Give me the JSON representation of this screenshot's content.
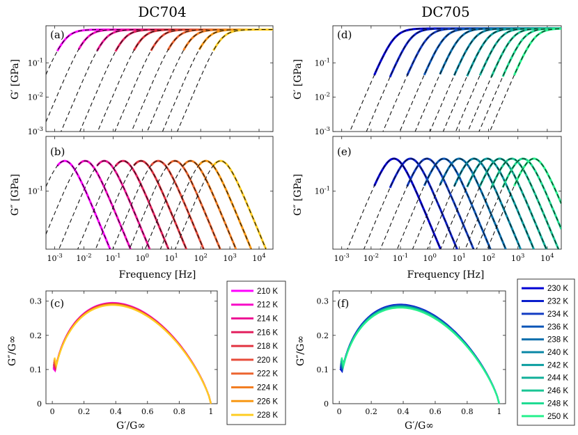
{
  "titles": {
    "left": "DC704",
    "right": "DC705"
  },
  "labels": {
    "storage_modulus": "G′ [GPa]",
    "loss_modulus": "G″ [GPa]",
    "frequency": "Frequency [Hz]",
    "normalized_x": "G′/G∞",
    "normalized_y": "G″/G∞"
  },
  "panels": {
    "a": "(a)",
    "b": "(b)",
    "c": "(c)",
    "d": "(d)",
    "e": "(e)",
    "f": "(f)"
  },
  "ticks": {
    "freq": [
      {
        "v": 0.001,
        "label": "10-3"
      },
      {
        "v": 0.01,
        "label": "10-2"
      },
      {
        "v": 0.1,
        "label": "10-1"
      },
      {
        "v": 1,
        "label": "100"
      },
      {
        "v": 10,
        "label": "101"
      },
      {
        "v": 100,
        "label": "102"
      },
      {
        "v": 1000,
        "label": "103"
      },
      {
        "v": 10000,
        "label": "104"
      }
    ],
    "gprime": [
      {
        "v": 0.001,
        "label": "10-3"
      },
      {
        "v": 0.01,
        "label": "10-2"
      },
      {
        "v": 0.1,
        "label": "10-1"
      }
    ],
    "gdouble": [
      {
        "v": 0.1,
        "label": "10-1"
      }
    ],
    "norm_x": [
      "0",
      "0.2",
      "0.4",
      "0.6",
      "0.8",
      "1"
    ],
    "norm_y": [
      "0",
      "0.1",
      "0.2",
      "0.3"
    ]
  },
  "colors": {
    "DC704": [
      "#ff00ff",
      "#f70cc7",
      "#ee1696",
      "#e3215f",
      "#e23442",
      "#e74c3a",
      "#ec6530",
      "#f27e22",
      "#f89814",
      "#fecd24"
    ],
    "DC705": [
      "#0000d4",
      "#0a1ecc",
      "#123cc3",
      "#0c57b8",
      "#0b6fad",
      "#0a87a6",
      "#0c9ea0",
      "#13b09a",
      "#1ac594",
      "#1fdb92",
      "#27f18e"
    ]
  },
  "chart_data": [
    {
      "type": "line",
      "panel": "a",
      "sample": "DC704",
      "title": "DC704",
      "xscale": "log",
      "yscale": "log",
      "xlim": [
        0.0005,
        30000
      ],
      "ylim": [
        0.001,
        1.2
      ],
      "ylabel": "G′ [GPa]",
      "xlabel": "Frequency [Hz]",
      "series_peak_frequency_hz": [
        0.0022,
        0.011,
        0.05,
        0.22,
        0.9,
        3.5,
        13,
        45,
        150,
        480
      ],
      "series": [
        "210 K",
        "212 K",
        "214 K",
        "216 K",
        "218 K",
        "220 K",
        "222 K",
        "224 K",
        "226 K",
        "228 K"
      ],
      "fit": "dashed black",
      "G_inf_GPa": 0.93
    },
    {
      "type": "line",
      "panel": "b",
      "sample": "DC704",
      "xscale": "log",
      "yscale": "log",
      "xlim": [
        0.0005,
        30000
      ],
      "ylim": [
        0.015,
        0.6
      ],
      "ylabel": "G″ [GPa]",
      "xlabel": "Frequency [Hz]",
      "peak_values_GPa": [
        0.27,
        0.27,
        0.27,
        0.27,
        0.27,
        0.27,
        0.27,
        0.27,
        0.27,
        0.27
      ]
    },
    {
      "type": "line",
      "panel": "c",
      "sample": "DC704",
      "xlabel": "G′/G∞",
      "ylabel": "G″/G∞",
      "xlim": [
        -0.04,
        1.04
      ],
      "ylim": [
        0,
        0.33
      ],
      "max_y": 0.295,
      "x_at_max": 0.4
    },
    {
      "type": "line",
      "panel": "d",
      "sample": "DC705",
      "title": "DC705",
      "xscale": "log",
      "yscale": "log",
      "xlim": [
        0.0005,
        30000
      ],
      "ylim": [
        0.001,
        1.2
      ],
      "ylabel": "G′ [GPa]",
      "xlabel": "Frequency [Hz]",
      "series_peak_frequency_hz": [
        0.06,
        0.22,
        0.8,
        3,
        10,
        32,
        90,
        240,
        620,
        1500,
        3500
      ],
      "series": [
        "230 K",
        "232 K",
        "234 K",
        "236 K",
        "238 K",
        "240 K",
        "242 K",
        "244 K",
        "246 K",
        "248 K",
        "250 K"
      ],
      "fit": "dashed black",
      "G_inf_GPa": 1.0
    },
    {
      "type": "line",
      "panel": "e",
      "sample": "DC705",
      "xscale": "log",
      "yscale": "log",
      "xlim": [
        0.0005,
        30000
      ],
      "ylim": [
        0.015,
        0.6
      ],
      "ylabel": "G″ [GPa]",
      "xlabel": "Frequency [Hz]"
    },
    {
      "type": "line",
      "panel": "f",
      "sample": "DC705",
      "xlabel": "G′/G∞",
      "ylabel": "G″/G∞",
      "xlim": [
        -0.04,
        1.04
      ],
      "ylim": [
        0,
        0.33
      ],
      "max_y": 0.29,
      "x_at_max": 0.4
    }
  ]
}
